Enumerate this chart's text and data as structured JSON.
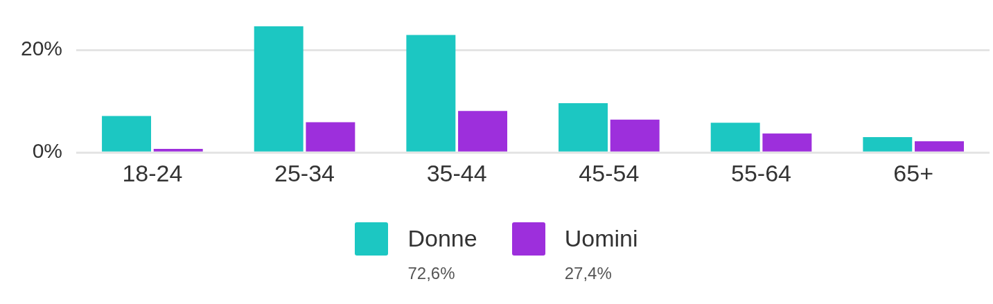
{
  "chart_data": {
    "type": "bar",
    "categories": [
      "18-24",
      "25-34",
      "35-44",
      "45-54",
      "55-64",
      "65+"
    ],
    "series": [
      {
        "name": "Donne",
        "color": "#1cc7c2",
        "values": [
          7.1,
          24.6,
          22.9,
          9.6,
          5.8,
          3.0
        ]
      },
      {
        "name": "Uomini",
        "color": "#9d2fdc",
        "values": [
          0.7,
          5.9,
          8.1,
          6.4,
          3.7,
          2.2
        ]
      }
    ],
    "ylim": [
      0,
      24.6
    ],
    "yticks": [
      {
        "value": 0,
        "label": "0%"
      },
      {
        "value": 20,
        "label": "20%"
      }
    ],
    "grid": "y",
    "legend": "bottom",
    "annotations": [
      "72,6%",
      "27,4%"
    ]
  }
}
